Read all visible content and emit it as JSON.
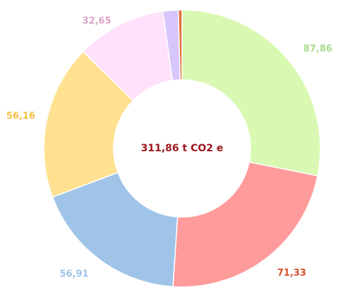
{
  "chart_data": {
    "type": "donut",
    "center_label": "311,86 t CO2 e",
    "values": [
      87.86,
      71.33,
      56.91,
      56.16,
      32.65,
      5.6,
      1.35
    ],
    "value_labels": [
      "87,86",
      "71,33",
      "56,91",
      "56,16",
      "32,65",
      null,
      null
    ],
    "colors": [
      "#d9f8b2",
      "#ff9b9b",
      "#a0c4e8",
      "#ffe191",
      "#ffe1fb",
      "#d7c6fb",
      "#e0703c"
    ],
    "label_colors": [
      "#a9d98c",
      "#d5502a",
      "#a0c4e8",
      "#f4c043",
      "#dda3c6",
      "#d7c6fb",
      "#e0703c"
    ]
  }
}
